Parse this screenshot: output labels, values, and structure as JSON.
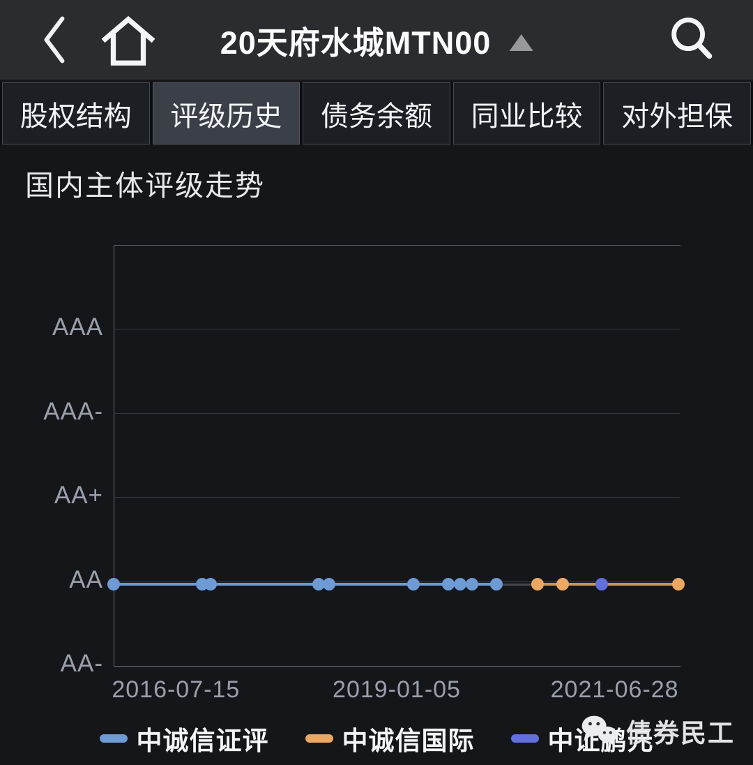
{
  "topbar": {
    "title": "20天府水城MTN00"
  },
  "tabs": {
    "items": [
      {
        "label": "股权结构",
        "active": false
      },
      {
        "label": "评级历史",
        "active": true
      },
      {
        "label": "债务余额",
        "active": false
      },
      {
        "label": "同业比较",
        "active": false
      },
      {
        "label": "对外担保",
        "active": false
      }
    ]
  },
  "section": {
    "title": "国内主体评级走势"
  },
  "chart_data": {
    "type": "line",
    "title": "国内主体评级走势",
    "y_categories": [
      "AAA",
      "AAA-",
      "AA+",
      "AA",
      "AA-"
    ],
    "x_ticks": [
      {
        "label": "2016-07-15",
        "pos": 0.11
      },
      {
        "label": "2019-01-05",
        "pos": 0.5
      },
      {
        "label": "2021-06-28",
        "pos": 0.885
      }
    ],
    "aa_level_frac": 0.808,
    "grid_on": true,
    "legend_position": "bottom",
    "series": [
      {
        "name": "中诚信证评",
        "color": "#6f9bd5",
        "line_color": "#6f9bd5",
        "rating": "AA",
        "x_pos": [
          0.0,
          0.156,
          0.171,
          0.362,
          0.38,
          0.53,
          0.591,
          0.612,
          0.633,
          0.676
        ]
      },
      {
        "name": "中诚信国际",
        "color": "#eca863",
        "line_color": "#c9965a",
        "rating": "AA",
        "x_pos": [
          0.749,
          0.793,
          0.997
        ]
      },
      {
        "name": "中证鹏元",
        "color": "#6170db",
        "line_color": "#6170db",
        "rating": "AA",
        "x_pos": [
          0.862
        ]
      }
    ],
    "connector": {
      "from": 0.676,
      "to": 0.749,
      "color": "#46484d"
    }
  },
  "watermark": {
    "icon": "wechat-icon",
    "text": "债券民工"
  },
  "colors": {
    "page_bg": "#15161a",
    "topbar_bg": "#2b2c30",
    "tab_active_bg": "#3b4048",
    "tab_inactive_bg": "#1c1f24",
    "gridline": "#35383e",
    "plot_border": "#6b6e75",
    "axis_label": "#9aa0aa"
  }
}
